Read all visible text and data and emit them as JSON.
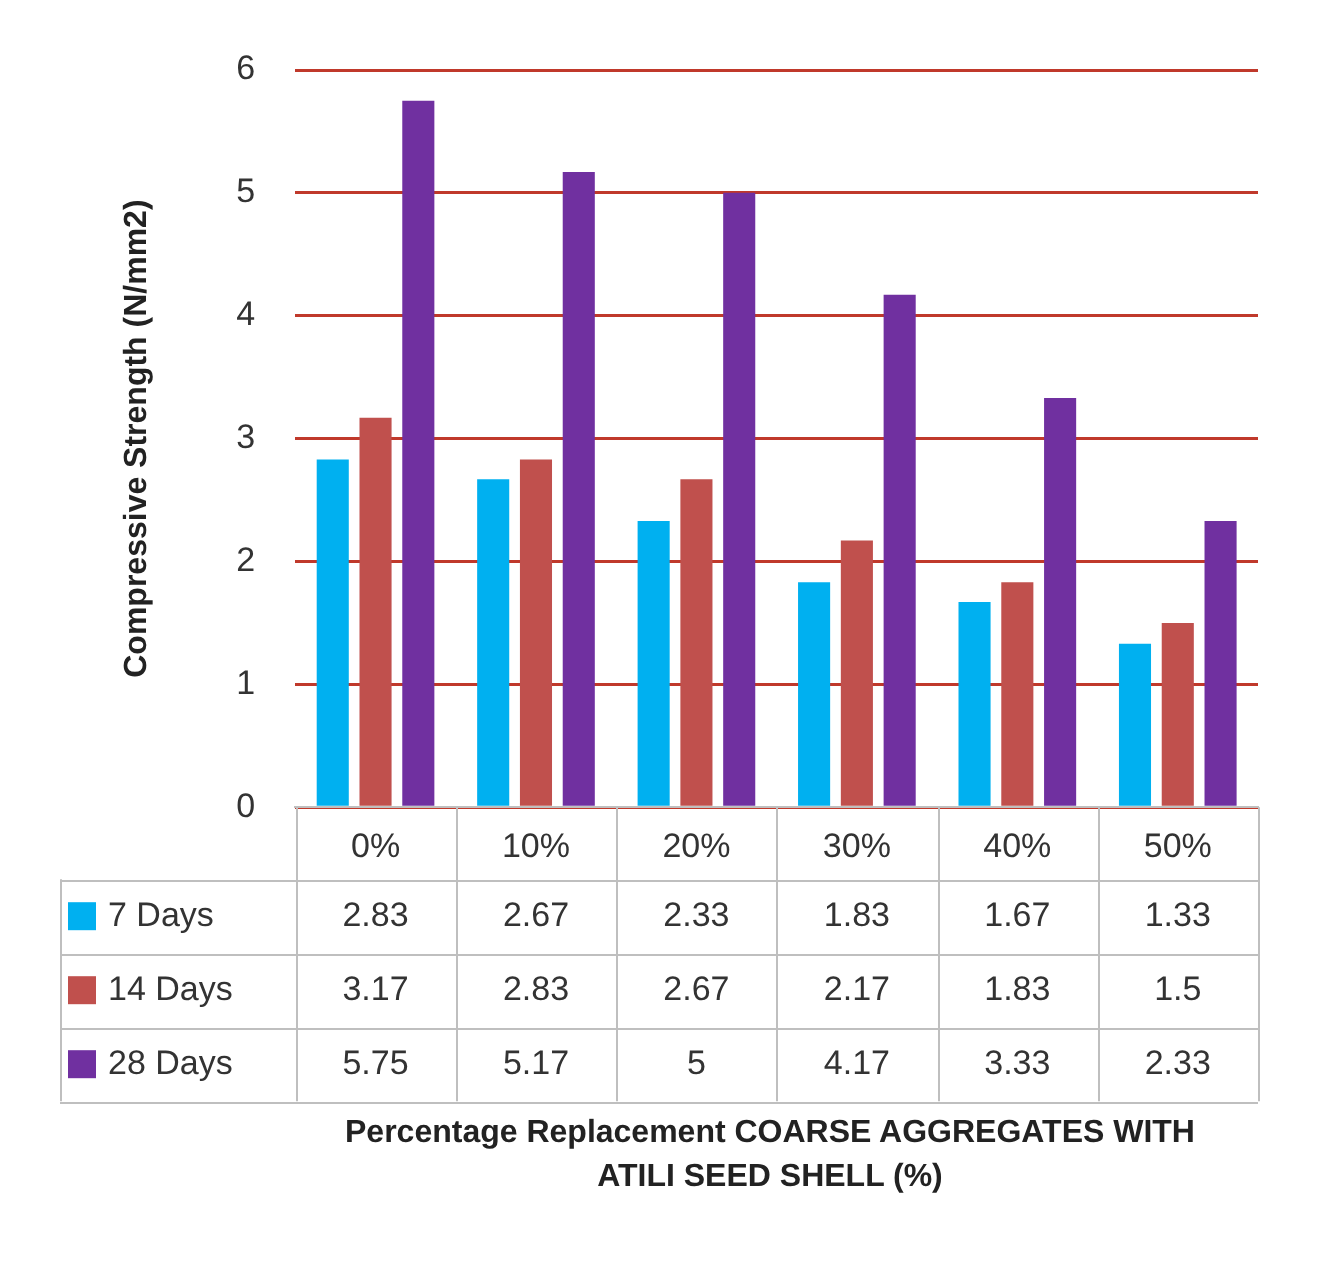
{
  "chart_data": {
    "type": "bar",
    "annotations": [
      "Percentage Replacement COARSE AGGREGATES WITH ATILI SEED SHELL (%)"
    ],
    "ylabel": "Compressive Strength (N/mm2)",
    "categories": [
      "0%",
      "10%",
      "20%",
      "30%",
      "40%",
      "50%"
    ],
    "series": [
      {
        "name": "7 Days",
        "color": "#00b0f0",
        "values": [
          2.83,
          2.67,
          2.33,
          1.83,
          1.67,
          1.33
        ]
      },
      {
        "name": "14 Days",
        "color": "#c0504d",
        "values": [
          3.17,
          2.83,
          2.67,
          2.17,
          1.83,
          1.5
        ]
      },
      {
        "name": "28 Days",
        "color": "#7030a0",
        "values": [
          5.75,
          5.17,
          5,
          4.17,
          3.33,
          2.33
        ]
      }
    ],
    "ylim": [
      0,
      6
    ],
    "yticks": [
      0,
      1,
      2,
      3,
      4,
      5,
      6
    ],
    "grid": true,
    "data_labels": true,
    "legend": "bottom left"
  }
}
